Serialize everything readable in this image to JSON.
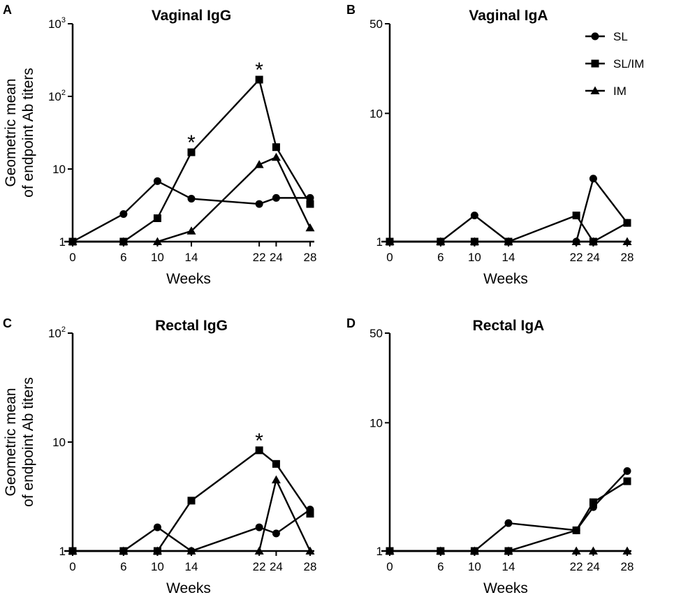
{
  "chart_data": [
    {
      "panel": "A",
      "title": "Vaginal IgG",
      "type": "line",
      "xlabel": "Weeks",
      "ylabel": [
        "Geometric mean",
        "of endpoint Ab titers"
      ],
      "yscale": "log",
      "ylim": [
        1,
        1000
      ],
      "yticks": [
        {
          "value": 1,
          "base": "1",
          "exp": ""
        },
        {
          "value": 10,
          "base": "10",
          "exp": ""
        },
        {
          "value": 100,
          "base": "10",
          "exp": "2"
        },
        {
          "value": 1000,
          "base": "10",
          "exp": "3"
        }
      ],
      "xticks": [
        0,
        6,
        10,
        14,
        22,
        24,
        28
      ],
      "xlim": [
        0,
        28
      ],
      "series": [
        {
          "name": "SL",
          "marker": "circle",
          "x": [
            0,
            6,
            10,
            14,
            22,
            24,
            28
          ],
          "values": [
            1,
            2.4,
            6.8,
            3.9,
            3.3,
            4.0,
            4.0
          ]
        },
        {
          "name": "SL/IM",
          "marker": "square",
          "x": [
            0,
            6,
            10,
            14,
            22,
            24,
            28
          ],
          "values": [
            1,
            1,
            2.1,
            17,
            170,
            20,
            3.3
          ]
        },
        {
          "name": "IM",
          "marker": "triangle",
          "x": [
            0,
            6,
            10,
            14,
            22,
            24,
            28
          ],
          "values": [
            1,
            1,
            1,
            1.4,
            11.5,
            14.5,
            1.55
          ]
        }
      ],
      "annotations": [
        {
          "text": "*",
          "x": 14,
          "y": 17
        },
        {
          "text": "*",
          "x": 22,
          "y": 170
        }
      ]
    },
    {
      "panel": "B",
      "title": "Vaginal IgA",
      "type": "line",
      "xlabel": "Weeks",
      "ylabel": [],
      "yscale": "log",
      "ylim": [
        1,
        50
      ],
      "yticks": [
        {
          "value": 1,
          "base": "1",
          "exp": ""
        },
        {
          "value": 10,
          "base": "10",
          "exp": ""
        },
        {
          "value": 50,
          "base": "50",
          "exp": ""
        }
      ],
      "xticks": [
        0,
        6,
        10,
        14,
        22,
        24,
        28
      ],
      "xlim": [
        0,
        28
      ],
      "series": [
        {
          "name": "SL",
          "marker": "circle",
          "x": [
            0,
            6,
            10,
            14,
            22,
            24,
            28
          ],
          "values": [
            1,
            1,
            1.6,
            1,
            1,
            3.1,
            1.4
          ]
        },
        {
          "name": "SL/IM",
          "marker": "square",
          "x": [
            0,
            6,
            10,
            14,
            22,
            24,
            28
          ],
          "values": [
            1,
            1,
            1,
            1,
            1.6,
            1,
            1.4
          ]
        },
        {
          "name": "IM",
          "marker": "triangle",
          "x": [
            0,
            6,
            10,
            14,
            22,
            24,
            28
          ],
          "values": [
            1,
            1,
            1,
            1,
            1,
            1,
            1
          ]
        }
      ],
      "legend": {
        "position": "top-right",
        "entries": [
          "SL",
          "SL/IM",
          "IM"
        ]
      },
      "annotations": []
    },
    {
      "panel": "C",
      "title": "Rectal IgG",
      "type": "line",
      "xlabel": "Weeks",
      "ylabel": [
        "Geometric mean",
        "of endpoint Ab titers"
      ],
      "yscale": "log",
      "ylim": [
        1,
        100
      ],
      "yticks": [
        {
          "value": 1,
          "base": "1",
          "exp": ""
        },
        {
          "value": 10,
          "base": "10",
          "exp": ""
        },
        {
          "value": 100,
          "base": "10",
          "exp": "2"
        }
      ],
      "xticks": [
        0,
        6,
        10,
        14,
        22,
        24,
        28
      ],
      "xlim": [
        0,
        28
      ],
      "series": [
        {
          "name": "SL",
          "marker": "circle",
          "x": [
            0,
            6,
            10,
            14,
            22,
            24,
            28
          ],
          "values": [
            1,
            1,
            1.65,
            1,
            1.65,
            1.45,
            2.4
          ]
        },
        {
          "name": "SL/IM",
          "marker": "square",
          "x": [
            0,
            6,
            10,
            14,
            22,
            24,
            28
          ],
          "values": [
            1,
            1,
            1,
            2.9,
            8.4,
            6.3,
            2.2
          ]
        },
        {
          "name": "IM",
          "marker": "triangle",
          "x": [
            0,
            6,
            10,
            14,
            22,
            24,
            28
          ],
          "values": [
            1,
            1,
            1,
            1,
            1,
            4.5,
            1
          ]
        }
      ],
      "annotations": [
        {
          "text": "*",
          "x": 22,
          "y": 8.4
        }
      ]
    },
    {
      "panel": "D",
      "title": "Rectal IgA",
      "type": "line",
      "xlabel": "Weeks",
      "ylabel": [],
      "yscale": "log",
      "ylim": [
        1,
        50
      ],
      "yticks": [
        {
          "value": 1,
          "base": "1",
          "exp": ""
        },
        {
          "value": 10,
          "base": "10",
          "exp": ""
        },
        {
          "value": 50,
          "base": "50",
          "exp": ""
        }
      ],
      "xticks": [
        0,
        6,
        10,
        14,
        22,
        24,
        28
      ],
      "xlim": [
        0,
        28
      ],
      "series": [
        {
          "name": "SL",
          "marker": "circle",
          "x": [
            0,
            6,
            10,
            14,
            22,
            24,
            28
          ],
          "values": [
            1,
            1,
            1,
            1.65,
            1.45,
            2.2,
            4.2
          ]
        },
        {
          "name": "SL/IM",
          "marker": "square",
          "x": [
            0,
            6,
            10,
            14,
            22,
            24,
            28
          ],
          "values": [
            1,
            1,
            1,
            1,
            1.45,
            2.4,
            3.5
          ]
        },
        {
          "name": "IM",
          "marker": "triangle",
          "x": [
            0,
            6,
            10,
            14,
            22,
            24,
            28
          ],
          "values": [
            1,
            1,
            1,
            1,
            1,
            1,
            1
          ]
        }
      ],
      "annotations": []
    }
  ]
}
